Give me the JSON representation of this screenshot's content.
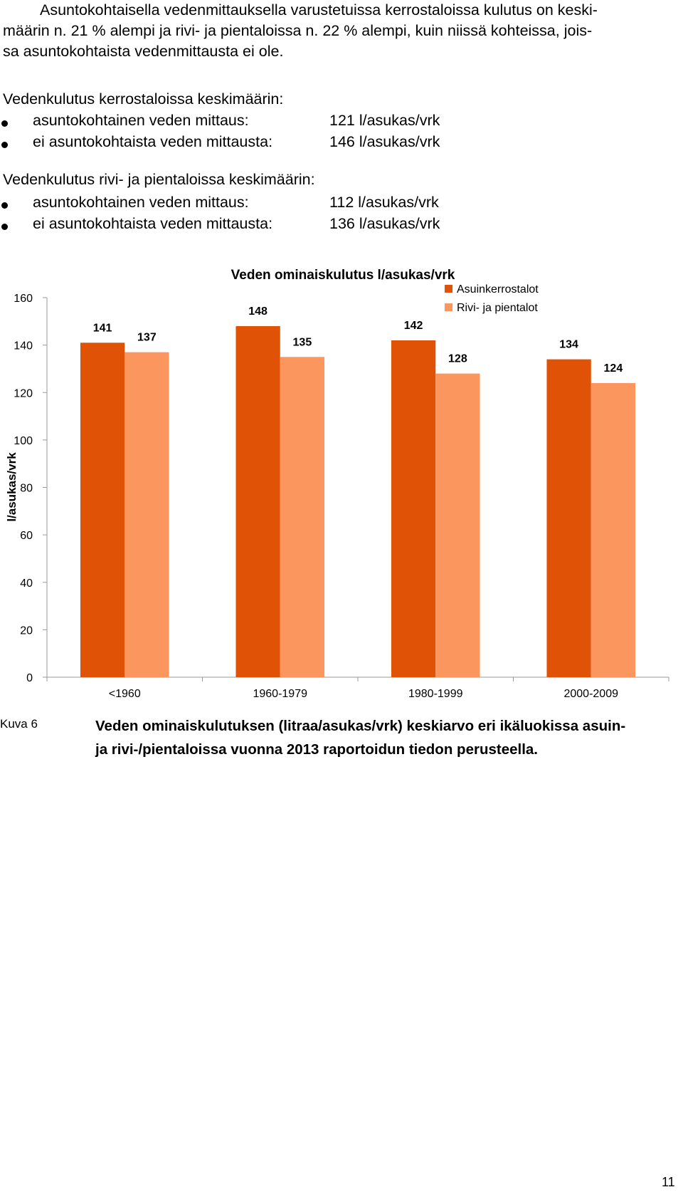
{
  "intro": {
    "lines": [
      "Asuntokohtaisella vedenmittauksella varustetuissa kerrostaloissa kulutus on keski-",
      "määrin n. 21 % alempi ja rivi- ja pientaloissa n. 22 % alempi, kuin niissä kohteissa, jois-",
      "sa asuntokohtaista vedenmittausta ei ole."
    ]
  },
  "blocks": [
    {
      "title": "Vedenkulutus kerrostaloissa keskimäärin:",
      "items": [
        {
          "label": "asuntokohtainen veden mittaus:",
          "value": "121 l/asukas/vrk"
        },
        {
          "label": "ei asuntokohtaista veden mittausta:",
          "value": "146 l/asukas/vrk"
        }
      ]
    },
    {
      "title": "Vedenkulutus rivi- ja pientaloissa keskimäärin:",
      "items": [
        {
          "label": "asuntokohtainen veden mittaus:",
          "value": "112 l/asukas/vrk"
        },
        {
          "label": "ei asuntokohtaista veden mittausta:",
          "value": "136 l/asukas/vrk"
        }
      ]
    }
  ],
  "chart_data": {
    "type": "bar",
    "title": "Veden ominaiskulutus l/asukas/vrk",
    "ylabel": "l/asukas/vrk",
    "xlabel": "",
    "ylim": [
      0,
      160
    ],
    "yticks": [
      0,
      20,
      40,
      60,
      80,
      100,
      120,
      140,
      160
    ],
    "categories": [
      "<1960",
      "1960-1979",
      "1980-1999",
      "2000-2009"
    ],
    "series": [
      {
        "name": "Asuinkerrostalot",
        "values": [
          141,
          148,
          142,
          134
        ],
        "color": "#E05206"
      },
      {
        "name": "Rivi- ja pientalot",
        "values": [
          137,
          135,
          128,
          124
        ],
        "color": "#FA965E"
      }
    ],
    "grid": false,
    "legend": "top-right",
    "data_labels": true
  },
  "caption": {
    "label": "Kuva 6",
    "lines": [
      "Veden ominaiskulutuksen (litraa/asukas/vrk) keskiarvo eri ikäluokissa asuin-",
      "ja rivi-/pientaloissa vuonna 2013 raportoidun tiedon perusteella."
    ]
  },
  "page_number": "11"
}
